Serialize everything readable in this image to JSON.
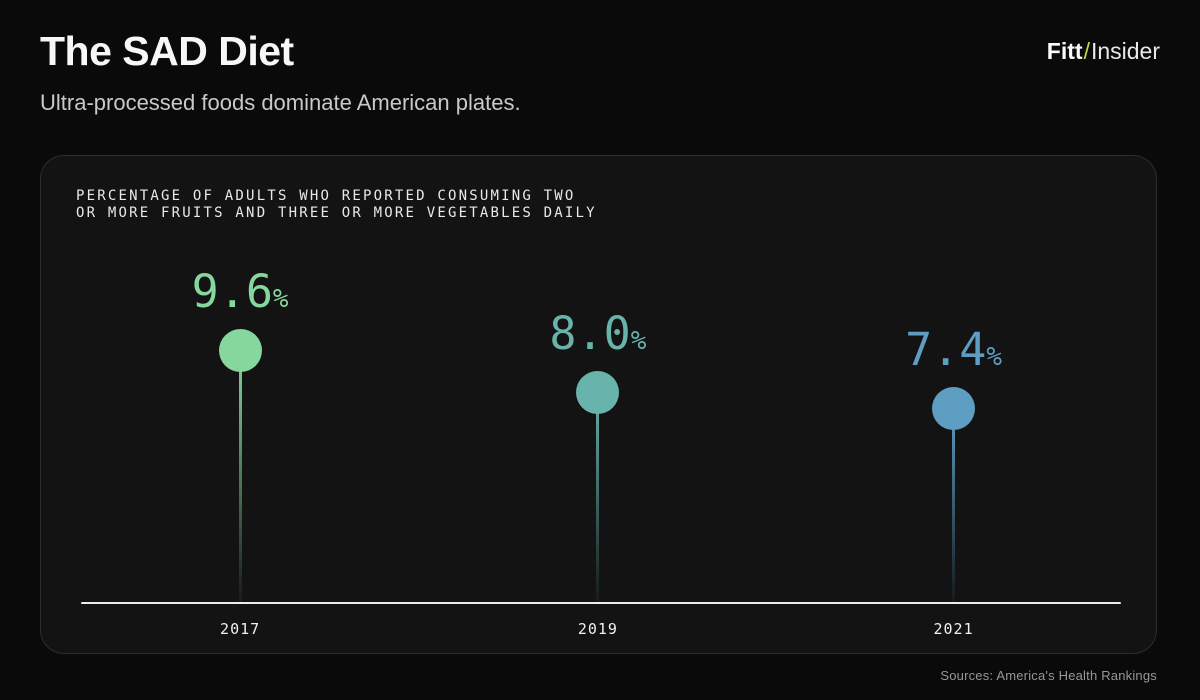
{
  "header": {
    "title": "The SAD Diet",
    "subtitle": "Ultra-processed foods dominate American plates.",
    "logo": {
      "brand": "Fitt",
      "slash": "/",
      "suffix": "Insider"
    }
  },
  "chart_data": {
    "type": "lollipop",
    "title": "PERCENTAGE OF ADULTS WHO REPORTED CONSUMING TWO OR MORE FRUITS AND THREE OR MORE VEGETABLES DAILY",
    "title_lines": [
      "PERCENTAGE OF ADULTS WHO REPORTED CONSUMING TWO",
      "OR MORE FRUITS AND THREE OR MORE VEGETABLES DAILY"
    ],
    "categories": [
      "2017",
      "2019",
      "2021"
    ],
    "values": [
      9.6,
      8.0,
      7.4
    ],
    "value_labels": [
      "9.6",
      "8.0",
      "7.4"
    ],
    "unit": "%",
    "series_colors": [
      "#85d79d",
      "#68b3ab",
      "#5d9ec2"
    ],
    "xlabel": "",
    "ylabel": "",
    "ylim": [
      0,
      17
    ],
    "grid": false,
    "legend": false,
    "axis_color": "#ededed"
  },
  "footer": {
    "sources": "Sources: America's Health Rankings"
  },
  "colors": {
    "background": "#0a0a0b",
    "card_background": "#131314",
    "card_border": "#2d2d30",
    "accent_lime": "#c7d845",
    "dot_2017": "#85d79d",
    "dot_2019": "#68b3ab",
    "dot_2021": "#5d9ec2"
  }
}
